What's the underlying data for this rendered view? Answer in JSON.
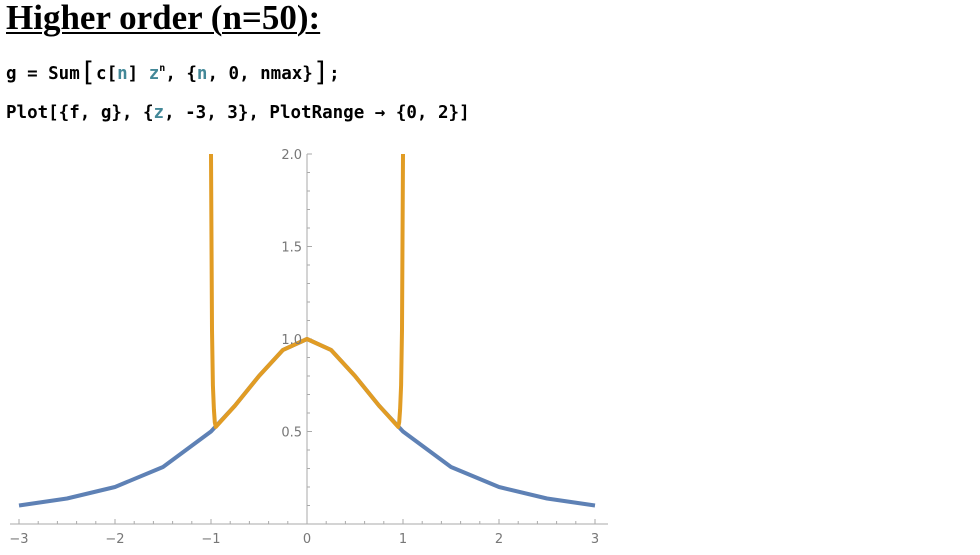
{
  "heading": "Higher order (n=50):",
  "code": {
    "line1": {
      "t1": "g = Sum",
      "b1": "[",
      "t2": "c[",
      "v1": "n",
      "t3": "] ",
      "v2": "z",
      "sup": "n",
      "t4": ", {",
      "v3": "n",
      "t5": ", 0, nmax}",
      "b2": "]",
      "t6": ";"
    },
    "line2": {
      "t1": "Plot[{f, g}, {",
      "v1": "z",
      "t2": ", -3, 3}, PlotRange → {0, 2}]"
    }
  },
  "chart_data": {
    "type": "line",
    "title": "",
    "xlabel": "",
    "ylabel": "",
    "xlim": [
      -3,
      3
    ],
    "ylim": [
      0,
      2
    ],
    "grid": false,
    "x_ticks": [
      "−3",
      "−2",
      "−1",
      "0",
      "1",
      "2",
      "3"
    ],
    "y_ticks": [
      "0.5",
      "1.0",
      "1.5",
      "2.0"
    ],
    "series": [
      {
        "color": "#5e81b5",
        "x": [
          -3,
          -2.5,
          -2,
          -1.5,
          -1,
          -0.75,
          -0.5,
          -0.25,
          0,
          0.25,
          0.5,
          0.75,
          1,
          1.5,
          2,
          2.5,
          3
        ],
        "y": [
          0.1,
          0.138,
          0.2,
          0.308,
          0.5,
          0.64,
          0.8,
          0.941,
          1.0,
          0.941,
          0.8,
          0.64,
          0.5,
          0.308,
          0.2,
          0.138,
          0.1
        ]
      },
      {
        "color": "#e19c24",
        "x": [
          -1.0,
          -0.99,
          -0.98,
          -0.97,
          -0.96,
          -0.95,
          -0.75,
          -0.5,
          -0.25,
          0,
          0.25,
          0.5,
          0.75,
          0.95,
          0.96,
          0.97,
          0.98,
          0.99,
          1.0
        ],
        "y": [
          2.0,
          1.05,
          0.75,
          0.62,
          0.55,
          0.525,
          0.64,
          0.8,
          0.941,
          1.0,
          0.941,
          0.8,
          0.64,
          0.525,
          0.55,
          0.62,
          0.75,
          1.05,
          2.0
        ]
      }
    ]
  }
}
